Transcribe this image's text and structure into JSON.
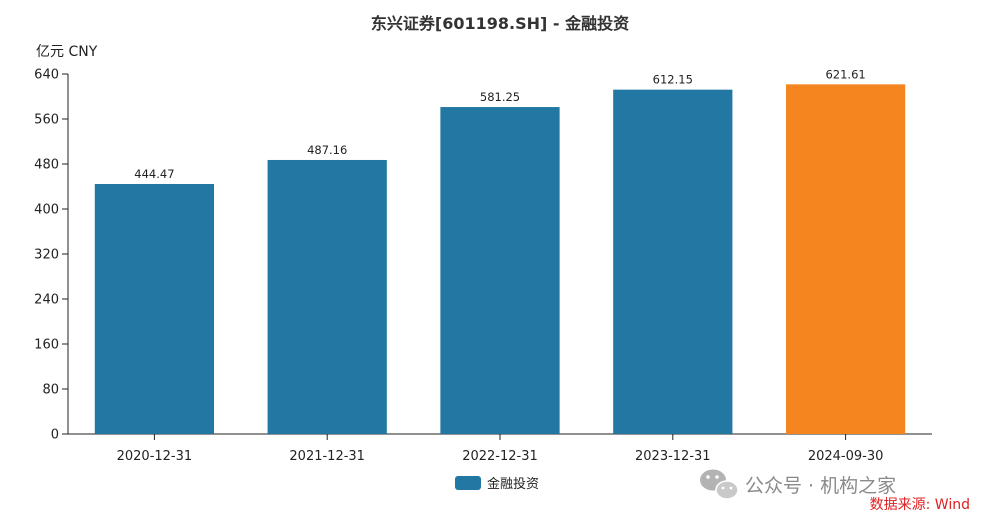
{
  "chart_data": {
    "type": "bar",
    "title": "东兴证券[601198.SH] - 金融投资",
    "unit_label": "亿元  CNY",
    "categories": [
      "2020-12-31",
      "2021-12-31",
      "2022-12-31",
      "2023-12-31",
      "2024-09-30"
    ],
    "series": [
      {
        "name": "金融投资",
        "values": [
          444.47,
          487.16,
          581.25,
          612.15,
          621.61
        ]
      }
    ],
    "value_labels": [
      "444.47",
      "487.16",
      "581.25",
      "612.15",
      "621.61"
    ],
    "ylim": [
      0,
      640
    ],
    "yticks": [
      0,
      80,
      160,
      240,
      320,
      400,
      480,
      560,
      640
    ],
    "bar_colors": [
      "#2277a3",
      "#2277a3",
      "#2277a3",
      "#2277a3",
      "#f5861f"
    ],
    "legend": {
      "placement": "bottom-center",
      "color": "#2277a3"
    },
    "grid": false
  },
  "watermark": {
    "text": "公众号 · 机构之家",
    "icon": "wechat-icon"
  },
  "source_note": "数据来源: Wind"
}
